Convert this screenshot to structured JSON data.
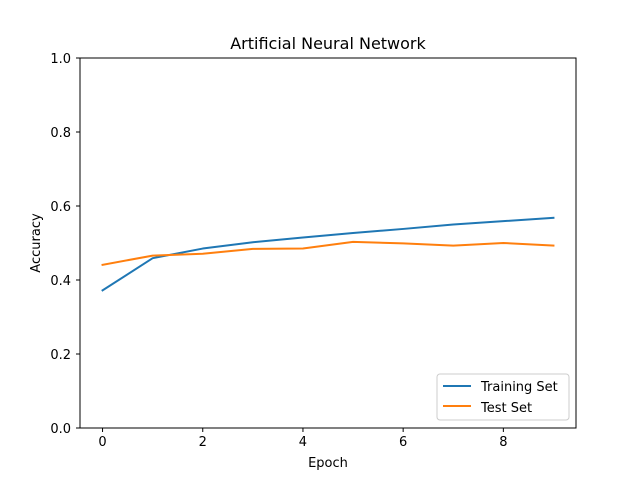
{
  "chart_data": {
    "type": "line",
    "title": "Artificial Neural Network",
    "xlabel": "Epoch",
    "ylabel": "Accuracy",
    "xlim": [
      -0.45,
      9.45
    ],
    "ylim": [
      0.0,
      1.0
    ],
    "xticks": [
      0,
      2,
      4,
      6,
      8
    ],
    "xtick_labels": [
      "0",
      "2",
      "4",
      "6",
      "8"
    ],
    "yticks": [
      0.0,
      0.2,
      0.4,
      0.6,
      0.8,
      1.0
    ],
    "ytick_labels": [
      "0.0",
      "0.2",
      "0.4",
      "0.6",
      "0.8",
      "1.0"
    ],
    "grid": false,
    "legend_position": "lower-right",
    "x": [
      0,
      1,
      2,
      3,
      4,
      5,
      6,
      7,
      8,
      9
    ],
    "series": [
      {
        "name": "Training Set",
        "color": "#1f77b4",
        "values": [
          0.372,
          0.459,
          0.485,
          0.502,
          0.515,
          0.527,
          0.538,
          0.55,
          0.559,
          0.568
        ]
      },
      {
        "name": "Test Set",
        "color": "#ff7f0e",
        "values": [
          0.441,
          0.466,
          0.471,
          0.484,
          0.485,
          0.503,
          0.499,
          0.493,
          0.5,
          0.493
        ]
      }
    ]
  }
}
